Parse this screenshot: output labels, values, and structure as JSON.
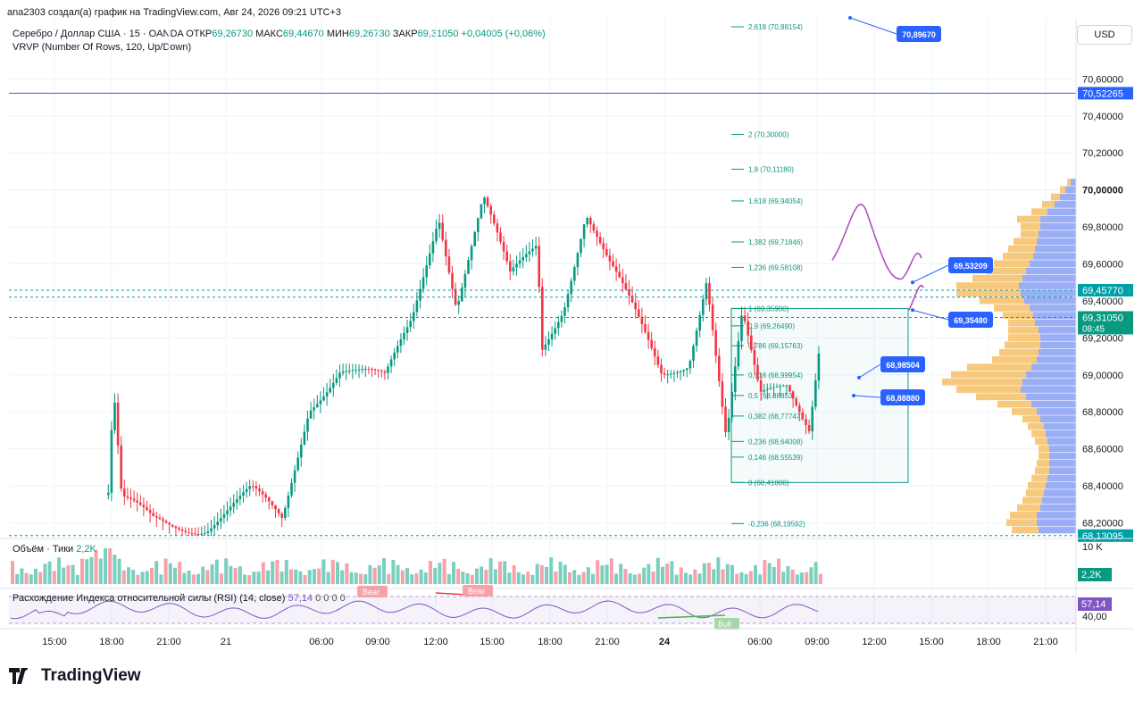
{
  "caption": "ana2303 создал(а) график на TradingView.com, Авг 24, 2026 09:21 UTC+3",
  "legend": {
    "symbol": "Серебро / Доллар США · 15 · OANDA",
    "open_label": "ОТКР",
    "open": "69,26730",
    "high_label": "МАКС",
    "high": "69,44670",
    "low_label": "МИН",
    "low": "69,26730",
    "close_label": "ЗАКР",
    "close": "69,31050",
    "change": "+0,04005 (+0,06%)",
    "indicator": "VRVP (Number Of Rows, 120, Up/Down)"
  },
  "currency_button": "USD",
  "volume_legend": {
    "title": "Объём · Тики",
    "value": "2,2K"
  },
  "rsi_legend": {
    "title": "Расхождение Индекса относительной силы (RSI) (14, close)",
    "value": "57,14",
    "extra": "0  0  0  0"
  },
  "branding": {
    "logo_text": "TradingView"
  },
  "colors": {
    "up": "#089981",
    "down": "#f23645",
    "fib": "#089981",
    "accent": "#2962ff",
    "rsi": "#7e57c2",
    "vp_up": "#9aaef5",
    "vp_down": "#f7c97d"
  },
  "chart_data": {
    "type": "candlestick",
    "title": "Серебро / Доллар США · 15 · OANDA",
    "y_range": [
      68.13,
      70.93
    ],
    "price_ticks": [
      "70,60000",
      "70,40000",
      "70,20000",
      "70,00000",
      "69,80000",
      "69,60000",
      "69,40000",
      "69,20000",
      "69,00000",
      "68,80000",
      "68,60000",
      "68,40000",
      "68,20000"
    ],
    "price_tick_values": [
      70.6,
      70.4,
      70.2,
      70.0,
      69.8,
      69.6,
      69.4,
      69.2,
      69.0,
      68.8,
      68.6,
      68.4,
      68.2
    ],
    "time_ticks": [
      "15:00",
      "18:00",
      "21:00",
      "21",
      "06:00",
      "09:00",
      "12:00",
      "15:00",
      "18:00",
      "21:00",
      "24",
      "06:00",
      "09:00",
      "12:00",
      "15:00",
      "18:00",
      "21:00"
    ],
    "price_labels": [
      {
        "text": "70,52265",
        "value": 70.52265,
        "color": "#2962ff"
      },
      {
        "text": "69,45770",
        "value": 69.4577,
        "color": "#00a0a8"
      },
      {
        "text": "69,31050",
        "value": 69.3105,
        "color": "#089981",
        "sub": "08:45"
      },
      {
        "text": "68,13095",
        "value": 68.13095,
        "color": "#00a0a8"
      }
    ],
    "horizontal_line": 70.52265,
    "dashed_lines": [
      69.4577,
      69.42,
      69.3105,
      68.13095
    ],
    "fib_levels": [
      {
        "label": "2,618 (70,88154)",
        "value": 70.88154
      },
      {
        "label": "2 (70,30000)",
        "value": 70.3
      },
      {
        "label": "1,8 (70,11180)",
        "value": 70.1118
      },
      {
        "label": "1,618 (69,94054)",
        "value": 69.94054
      },
      {
        "label": "1,382 (69,71846)",
        "value": 69.71846
      },
      {
        "label": "1,236 (69,58108)",
        "value": 69.58108
      },
      {
        "label": "1 (69,35900)",
        "value": 69.359
      },
      {
        "label": "0,9 (69,26490)",
        "value": 69.2649
      },
      {
        "label": "0,786 (69,15763)",
        "value": 69.15763
      },
      {
        "label": "0,618 (68,99954)",
        "value": 68.99954
      },
      {
        "label": "0,5 (68,88853)",
        "value": 68.88853
      },
      {
        "label": "0,382 (68,77747)",
        "value": 68.77747
      },
      {
        "label": "0,236 (68,64008)",
        "value": 68.64008
      },
      {
        "label": "0,146 (68,55539)",
        "value": 68.55539
      },
      {
        "label": "0 (68,41800)",
        "value": 68.418
      },
      {
        "label": "-0,236 (68,19592)",
        "value": 68.19592
      }
    ],
    "fib_extra_label": "1,8 (69,42014)",
    "annotations": [
      {
        "text": "70,89670",
        "value": 70.8967
      },
      {
        "text": "69,53209",
        "value": 69.53209
      },
      {
        "text": "69,35480",
        "value": 69.3548
      },
      {
        "text": "68,98504",
        "value": 68.98504
      },
      {
        "text": "68,88880",
        "value": 68.8888
      }
    ],
    "volume_axis_label": "10 K",
    "volume_current": "2,2K",
    "rsi_current": "57,14",
    "rsi_axis_label": "40,00",
    "divergence_labels": {
      "bear": "Bear",
      "bull": "Bull"
    }
  }
}
